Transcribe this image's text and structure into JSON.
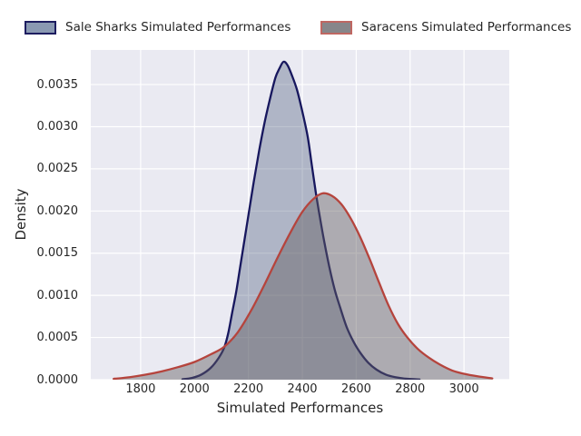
{
  "figure": {
    "background": "#ffffff",
    "plot_background": "#eaeaf2",
    "grid_color": "#ffffff",
    "text_color": "#262626"
  },
  "chart_data": {
    "type": "area",
    "title": "",
    "xlabel": "Simulated Performances",
    "ylabel": "Density",
    "xlim": [
      1615,
      3168
    ],
    "ylim": [
      0,
      0.00391
    ],
    "grid": true,
    "legend_position": "top",
    "x_ticks": {
      "values": [
        1800,
        2000,
        2200,
        2400,
        2600,
        2800,
        3000
      ],
      "labels": [
        "1800",
        "2000",
        "2200",
        "2400",
        "2600",
        "2800",
        "3000"
      ]
    },
    "y_ticks": {
      "values": [
        0.0,
        0.0005,
        0.001,
        0.0015,
        0.002,
        0.0025,
        0.003,
        0.0035
      ],
      "labels": [
        "0.0000",
        "0.0005",
        "0.0010",
        "0.0015",
        "0.0020",
        "0.0025",
        "0.0030",
        "0.0035"
      ]
    },
    "series": [
      {
        "key": "sale-sharks",
        "name": "Sale Sharks Simulated Performances",
        "line_color": "#17175e",
        "fill_color": "rgba(62,80,115,0.34)",
        "legend_fill": "#8a99b2",
        "legend_border": "#1d1d60",
        "points": [
          [
            1955,
            5e-06
          ],
          [
            1990,
            2e-05
          ],
          [
            2025,
            6e-05
          ],
          [
            2060,
            0.00014
          ],
          [
            2090,
            0.00026
          ],
          [
            2110,
            0.00038
          ],
          [
            2125,
            0.00055
          ],
          [
            2140,
            0.0008
          ],
          [
            2155,
            0.00105
          ],
          [
            2170,
            0.00135
          ],
          [
            2185,
            0.00165
          ],
          [
            2200,
            0.00195
          ],
          [
            2220,
            0.00235
          ],
          [
            2240,
            0.00272
          ],
          [
            2260,
            0.00305
          ],
          [
            2280,
            0.00333
          ],
          [
            2300,
            0.00358
          ],
          [
            2315,
            0.00369
          ],
          [
            2330,
            0.00377
          ],
          [
            2345,
            0.00373
          ],
          [
            2360,
            0.00362
          ],
          [
            2380,
            0.00344
          ],
          [
            2400,
            0.00318
          ],
          [
            2420,
            0.00288
          ],
          [
            2435,
            0.00255
          ],
          [
            2450,
            0.00222
          ],
          [
            2465,
            0.00193
          ],
          [
            2480,
            0.00166
          ],
          [
            2500,
            0.00134
          ],
          [
            2520,
            0.00107
          ],
          [
            2540,
            0.00086
          ],
          [
            2565,
            0.00062
          ],
          [
            2590,
            0.00045
          ],
          [
            2615,
            0.00032
          ],
          [
            2645,
            0.0002
          ],
          [
            2675,
            0.00012
          ],
          [
            2710,
            6e-05
          ],
          [
            2745,
            3e-05
          ],
          [
            2790,
            1e-05
          ],
          [
            2835,
            3e-06
          ]
        ]
      },
      {
        "key": "saracens",
        "name": "Saracens Simulated Performances",
        "line_color": "#b5443d",
        "fill_color": "rgba(100,95,98,0.45)",
        "legend_fill": "#87868a",
        "legend_border": "#bf6762",
        "points": [
          [
            1700,
            1e-05
          ],
          [
            1760,
            3e-05
          ],
          [
            1820,
            6e-05
          ],
          [
            1880,
            0.0001
          ],
          [
            1940,
            0.00015
          ],
          [
            2000,
            0.00021
          ],
          [
            2060,
            0.0003
          ],
          [
            2110,
            0.00039
          ],
          [
            2160,
            0.00056
          ],
          [
            2210,
            0.00082
          ],
          [
            2260,
            0.00113
          ],
          [
            2310,
            0.00146
          ],
          [
            2360,
            0.00177
          ],
          [
            2400,
            0.00199
          ],
          [
            2440,
            0.00214
          ],
          [
            2475,
            0.00221
          ],
          [
            2510,
            0.00218
          ],
          [
            2545,
            0.00208
          ],
          [
            2580,
            0.00191
          ],
          [
            2615,
            0.00169
          ],
          [
            2650,
            0.00143
          ],
          [
            2685,
            0.00115
          ],
          [
            2720,
            0.00088
          ],
          [
            2755,
            0.00066
          ],
          [
            2790,
            0.0005
          ],
          [
            2830,
            0.00036
          ],
          [
            2870,
            0.00026
          ],
          [
            2910,
            0.00018
          ],
          [
            2955,
            0.00011
          ],
          [
            3000,
            7e-05
          ],
          [
            3050,
            4e-05
          ],
          [
            3105,
            1.5e-05
          ]
        ]
      }
    ]
  }
}
